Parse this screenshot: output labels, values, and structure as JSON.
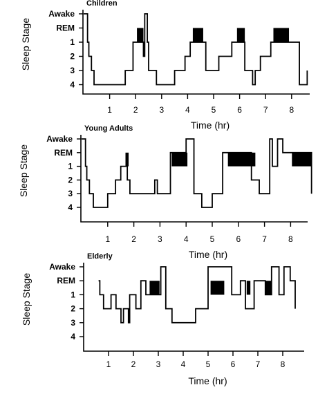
{
  "chart_data": [
    {
      "type": "line",
      "title": "Children",
      "xlabel": "Time (hr)",
      "ylabel": "Sleep Stage",
      "y_categories": [
        "Awake",
        "REM",
        "1",
        "2",
        "3",
        "4"
      ],
      "x_ticks": [
        "1",
        "2",
        "3",
        "4",
        "5",
        "6",
        "7",
        "8"
      ],
      "xlim": [
        0,
        8.6
      ],
      "series": [
        {
          "x": [
            0,
            0.15,
            0.2,
            0.3,
            0.4,
            0.6,
            1.6,
            1.9,
            2.1,
            2.3,
            2.35,
            2.45,
            2.5,
            2.8,
            3.5,
            3.6,
            3.9,
            4.1,
            4.3,
            4.7,
            5.2,
            5.7,
            6.0,
            6.2,
            6.5,
            6.6,
            6.8,
            7.2,
            7.7,
            8.3,
            8.6
          ],
          "y": [
            "Awake",
            "1",
            "2",
            "3",
            "4",
            "4",
            "3",
            "1",
            "1",
            "2",
            "Awake",
            "1",
            "3",
            "4",
            "3",
            "3",
            "2",
            "1",
            "1",
            "3",
            "2",
            "1",
            "1",
            "3",
            "4",
            "3",
            "2",
            "1",
            "1",
            "4",
            "3"
          ]
        }
      ],
      "rem_periods": [
        [
          2.05,
          2.3
        ],
        [
          4.2,
          4.6
        ],
        [
          5.9,
          6.2
        ],
        [
          7.3,
          7.9
        ]
      ]
    },
    {
      "type": "line",
      "title": "Young Adults",
      "xlabel": "Time (hr)",
      "ylabel": "Sleep Stage",
      "y_categories": [
        "Awake",
        "REM",
        "1",
        "2",
        "3",
        "4"
      ],
      "x_ticks": [
        "1",
        "2",
        "3",
        "4",
        "5",
        "6",
        "7",
        "8"
      ],
      "xlim": [
        0,
        8.8
      ],
      "series": [
        {
          "x": [
            0,
            0.15,
            0.2,
            0.3,
            0.45,
            0.6,
            1.0,
            1.3,
            1.5,
            1.6,
            1.7,
            1.75,
            1.85,
            2.3,
            2.8,
            2.9,
            3.4,
            3.7,
            4.0,
            4.3,
            4.6,
            5.0,
            5.4,
            5.7,
            6.2,
            6.5,
            6.7,
            6.8,
            7.2,
            7.3,
            7.5,
            7.7,
            8.2,
            8.6,
            8.8
          ],
          "y": [
            "Awake",
            "1",
            "2",
            "3",
            "4",
            "4",
            "3",
            "2",
            "1",
            "1",
            "1",
            "2",
            "3",
            "3",
            "2",
            "3",
            "REM",
            "REM",
            "Awake",
            "3",
            "4",
            "3",
            "REM",
            "REM",
            "REM",
            "2",
            "2",
            "3",
            "Awake",
            "1",
            "Awake",
            "REM",
            "REM",
            "REM",
            "3"
          ]
        }
      ],
      "rem_periods": [
        [
          1.68,
          1.8
        ],
        [
          3.45,
          4.05
        ],
        [
          5.6,
          6.65
        ],
        [
          8.05,
          8.8
        ]
      ]
    },
    {
      "type": "line",
      "title": "Elderly",
      "xlabel": "Time (hr)",
      "ylabel": "Sleep Stage",
      "y_categories": [
        "Awake",
        "REM",
        "1",
        "2",
        "3",
        "4"
      ],
      "x_ticks": [
        "1",
        "2",
        "3",
        "4",
        "5",
        "6",
        "7",
        "8"
      ],
      "xlim": [
        0,
        8.7
      ],
      "series": [
        {
          "x": [
            0.6,
            0.65,
            0.8,
            1.1,
            1.3,
            1.5,
            1.6,
            1.8,
            1.85,
            2.1,
            2.3,
            2.5,
            2.8,
            3.1,
            3.3,
            3.55,
            4.0,
            4.5,
            5.0,
            5.6,
            5.95,
            6.3,
            6.5,
            6.85,
            7.3,
            7.55,
            7.85,
            8.05,
            8.3,
            8.5
          ],
          "y": [
            "REM",
            "1",
            "2",
            "1",
            "2",
            "3",
            "2",
            "3",
            "1",
            "2",
            "REM",
            "1",
            "1",
            "Awake",
            "2",
            "3",
            "3",
            "2",
            "Awake",
            "Awake",
            "1",
            "REM",
            "2",
            "REM",
            "1",
            "Awake",
            "1",
            "Awake",
            "REM",
            "2"
          ]
        }
      ],
      "rem_periods": [
        [
          2.65,
          3.05
        ],
        [
          5.1,
          5.65
        ],
        [
          6.55,
          6.7
        ],
        [
          7.3,
          7.55
        ]
      ]
    }
  ]
}
